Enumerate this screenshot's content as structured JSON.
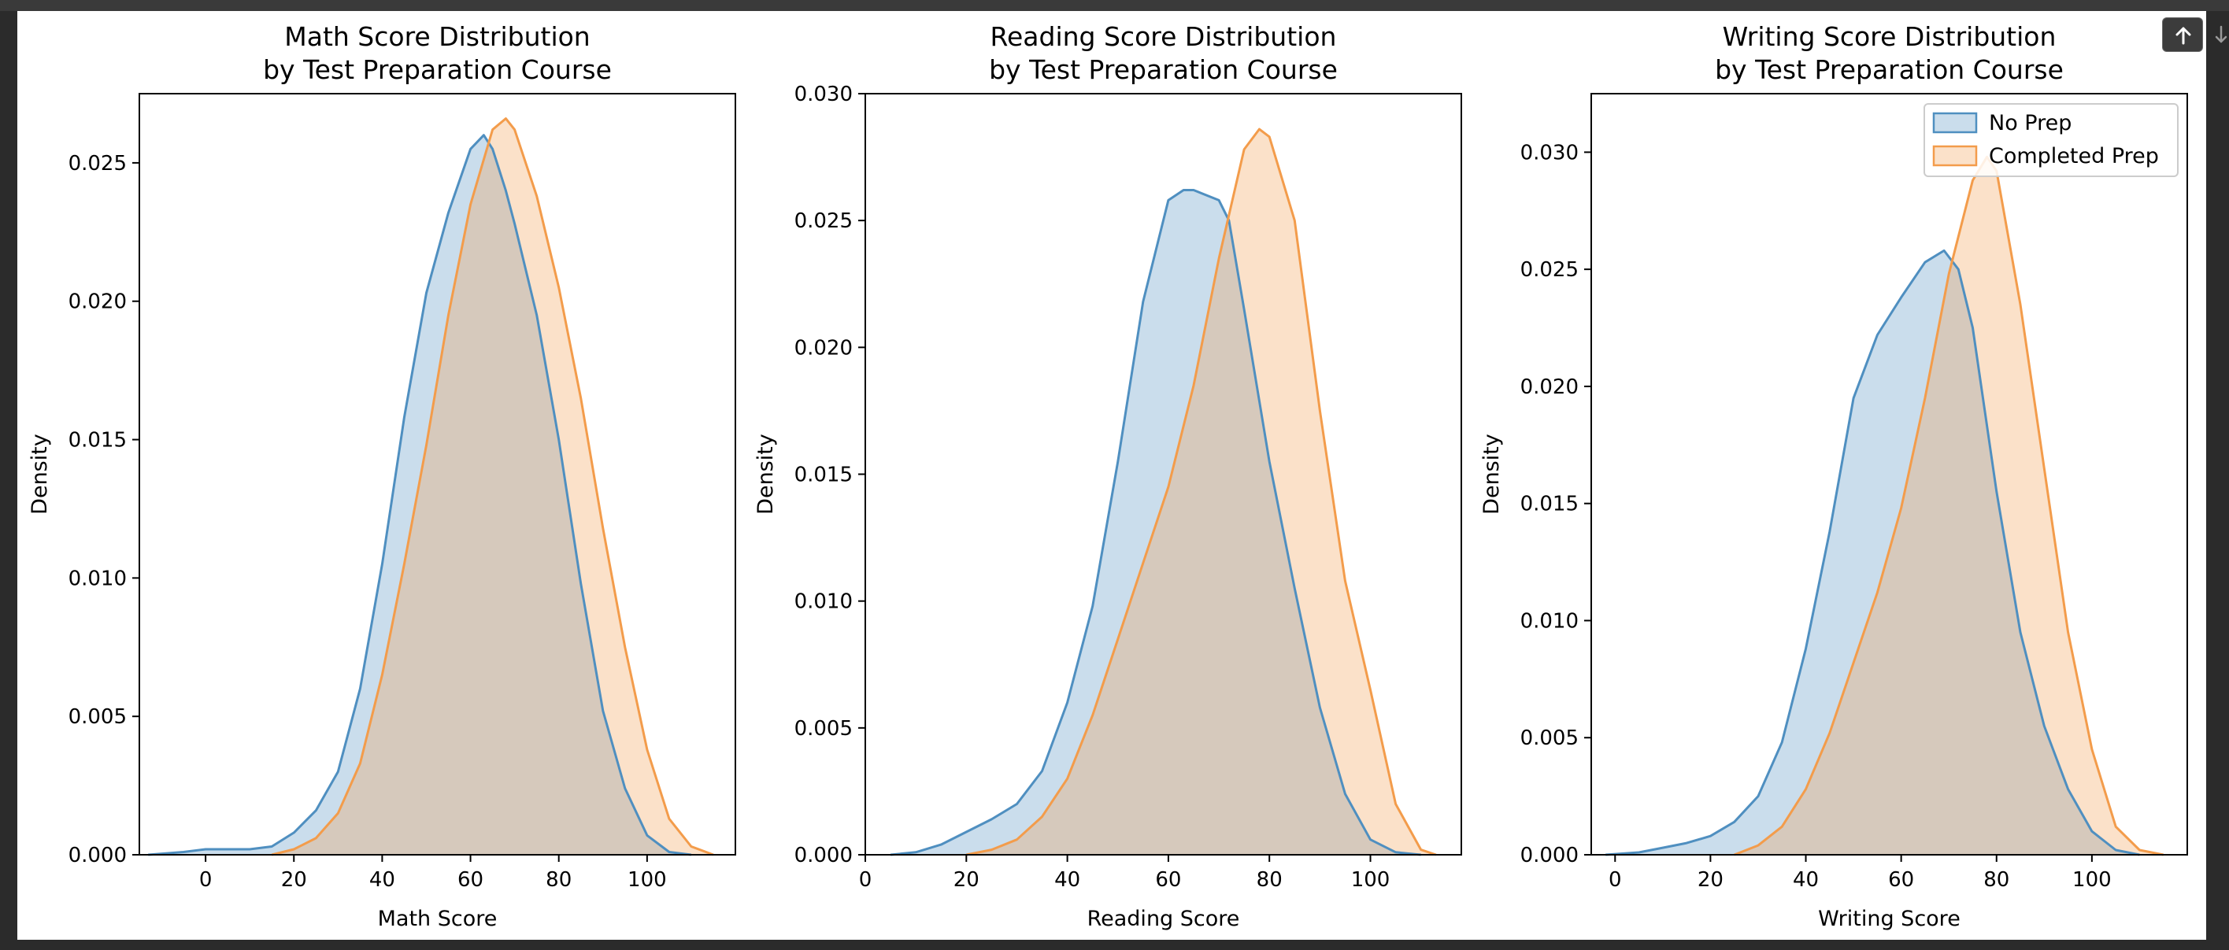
{
  "toolbar": {
    "up_icon": "arrow-up-icon",
    "down_icon": "arrow-down-icon"
  },
  "colors": {
    "no_prep": "#4f8fc0",
    "completed_prep": "#f39c4b"
  },
  "chart_data": [
    {
      "type": "area",
      "title": "Math Score Distribution",
      "subtitle": "by Test Preparation Course",
      "xlabel": "Math Score",
      "ylabel": "Density",
      "xlim": [
        -15,
        120
      ],
      "ylim": [
        0,
        0.0275
      ],
      "xticks": [
        "0",
        "20",
        "40",
        "60",
        "80",
        "100"
      ],
      "yticks": [
        "0.000",
        "0.005",
        "0.010",
        "0.015",
        "0.020",
        "0.025"
      ],
      "grid": false,
      "series": [
        {
          "name": "No Prep",
          "x": [
            -13,
            -5,
            0,
            5,
            10,
            15,
            20,
            25,
            30,
            35,
            40,
            45,
            50,
            55,
            60,
            63,
            65,
            68,
            70,
            75,
            80,
            85,
            90,
            95,
            100,
            105,
            110
          ],
          "y": [
            0,
            0.0001,
            0.0002,
            0.0002,
            0.0002,
            0.0003,
            0.0008,
            0.0016,
            0.003,
            0.006,
            0.0105,
            0.0158,
            0.0203,
            0.0232,
            0.0255,
            0.026,
            0.0255,
            0.024,
            0.0228,
            0.0195,
            0.015,
            0.0098,
            0.0052,
            0.0024,
            0.0007,
            0.0001,
            0
          ]
        },
        {
          "name": "Completed Prep",
          "x": [
            15,
            20,
            25,
            30,
            35,
            40,
            45,
            50,
            55,
            60,
            65,
            68,
            70,
            75,
            80,
            85,
            90,
            95,
            100,
            105,
            110,
            115
          ],
          "y": [
            0,
            0.0002,
            0.0006,
            0.0015,
            0.0033,
            0.0065,
            0.0105,
            0.0148,
            0.0195,
            0.0235,
            0.0262,
            0.0266,
            0.0262,
            0.0238,
            0.0205,
            0.0165,
            0.0118,
            0.0075,
            0.0038,
            0.0013,
            0.0003,
            0
          ]
        }
      ]
    },
    {
      "type": "area",
      "title": "Reading Score Distribution",
      "subtitle": "by Test Preparation Course",
      "xlabel": "Reading Score",
      "ylabel": "Density",
      "xlim": [
        0,
        118
      ],
      "ylim": [
        0,
        0.03
      ],
      "xticks": [
        "0",
        "20",
        "40",
        "60",
        "80",
        "100"
      ],
      "yticks": [
        "0.000",
        "0.005",
        "0.010",
        "0.015",
        "0.020",
        "0.025",
        "0.030"
      ],
      "grid": false,
      "series": [
        {
          "name": "No Prep",
          "x": [
            5,
            10,
            15,
            20,
            25,
            30,
            35,
            40,
            45,
            50,
            55,
            60,
            63,
            65,
            70,
            72,
            75,
            80,
            85,
            90,
            95,
            100,
            105,
            110
          ],
          "y": [
            0,
            0.0001,
            0.0004,
            0.0009,
            0.0014,
            0.002,
            0.0033,
            0.006,
            0.0098,
            0.0155,
            0.0218,
            0.0258,
            0.0262,
            0.0262,
            0.0258,
            0.025,
            0.0215,
            0.0155,
            0.0105,
            0.0058,
            0.0024,
            0.0006,
            0.0001,
            0
          ]
        },
        {
          "name": "Completed Prep",
          "x": [
            20,
            25,
            30,
            35,
            40,
            45,
            50,
            55,
            60,
            65,
            70,
            75,
            78,
            80,
            85,
            90,
            95,
            100,
            105,
            110,
            113
          ],
          "y": [
            0,
            0.0002,
            0.0006,
            0.0015,
            0.003,
            0.0055,
            0.0085,
            0.0115,
            0.0145,
            0.0185,
            0.0235,
            0.0278,
            0.0286,
            0.0283,
            0.025,
            0.0175,
            0.0108,
            0.0065,
            0.002,
            0.0002,
            0
          ]
        }
      ]
    },
    {
      "type": "area",
      "title": "Writing Score Distribution",
      "subtitle": "by Test Preparation Course",
      "xlabel": "Writing Score",
      "ylabel": "Density",
      "xlim": [
        -5,
        120
      ],
      "ylim": [
        0,
        0.0325
      ],
      "xticks": [
        "0",
        "20",
        "40",
        "60",
        "80",
        "100"
      ],
      "yticks": [
        "0.000",
        "0.005",
        "0.010",
        "0.015",
        "0.020",
        "0.025",
        "0.030"
      ],
      "grid": false,
      "legend": {
        "placement": "top-right",
        "entries": [
          "No Prep",
          "Completed Prep"
        ]
      },
      "series": [
        {
          "name": "No Prep",
          "x": [
            -2,
            5,
            10,
            15,
            20,
            25,
            30,
            35,
            40,
            45,
            50,
            55,
            60,
            65,
            69,
            72,
            75,
            80,
            85,
            90,
            95,
            100,
            105,
            110
          ],
          "y": [
            0,
            0.0001,
            0.0003,
            0.0005,
            0.0008,
            0.0014,
            0.0025,
            0.0048,
            0.0088,
            0.0138,
            0.0195,
            0.0222,
            0.0238,
            0.0253,
            0.0258,
            0.025,
            0.0225,
            0.0155,
            0.0095,
            0.0055,
            0.0028,
            0.001,
            0.0002,
            0
          ]
        },
        {
          "name": "Completed Prep",
          "x": [
            25,
            30,
            35,
            40,
            45,
            50,
            55,
            60,
            65,
            70,
            75,
            78,
            80,
            85,
            90,
            95,
            100,
            105,
            110,
            115
          ],
          "y": [
            0,
            0.0004,
            0.0012,
            0.0028,
            0.0052,
            0.0082,
            0.0112,
            0.0148,
            0.0195,
            0.0248,
            0.0288,
            0.0298,
            0.0292,
            0.0235,
            0.0165,
            0.0095,
            0.0045,
            0.0012,
            0.0002,
            0
          ]
        }
      ]
    }
  ]
}
